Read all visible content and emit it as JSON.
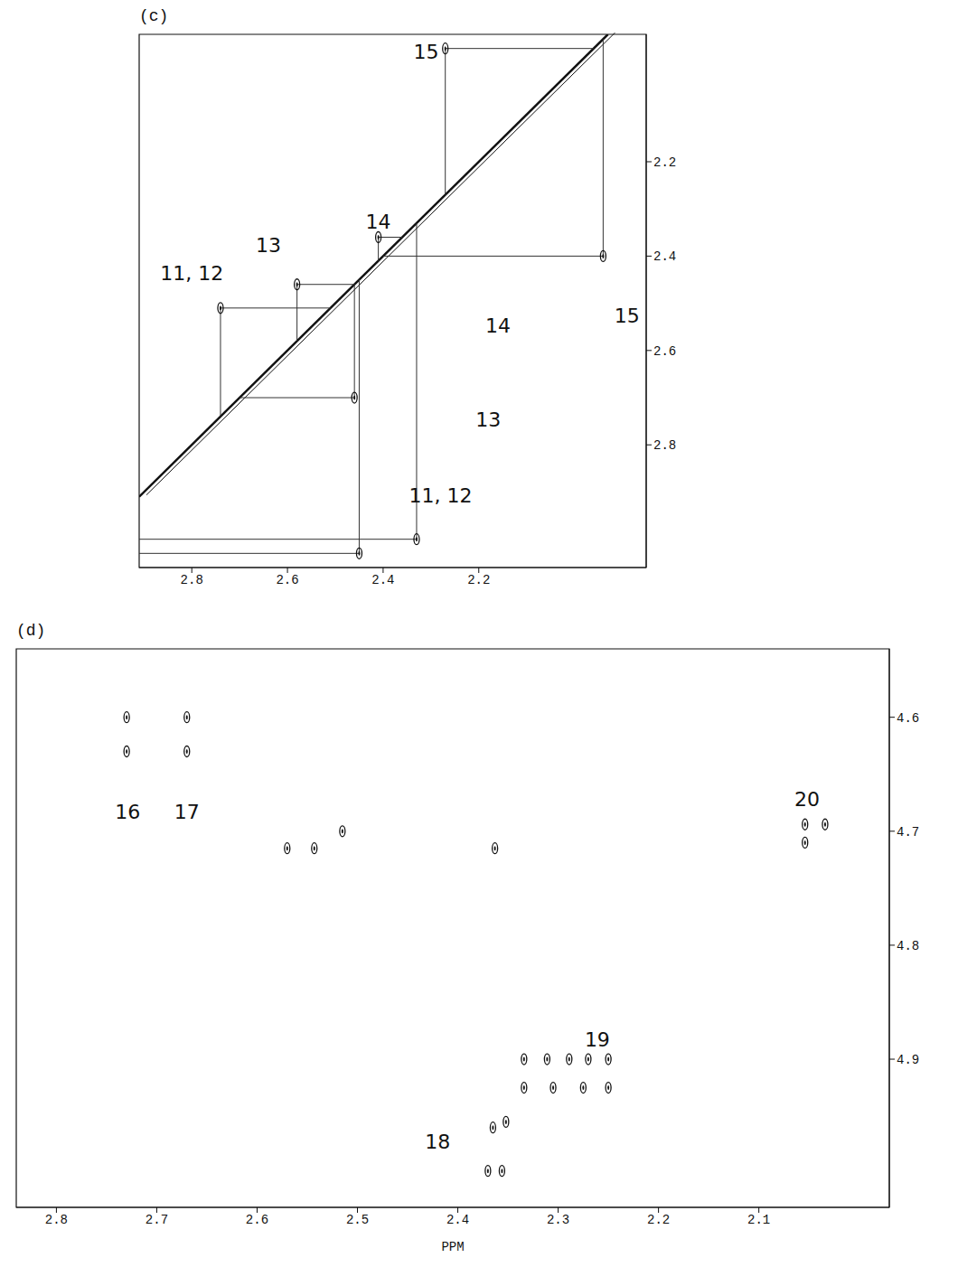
{
  "chart_data": [
    {
      "type": "correlation",
      "title": "(c)",
      "xlim": [
        1.85,
        2.91
      ],
      "ylim": [
        1.93,
        3.06
      ],
      "xticks": [
        2.8,
        2.6,
        2.4,
        2.2
      ],
      "yticks": [
        2.2,
        2.4,
        2.6,
        2.8
      ],
      "grid": false,
      "peaks": {
        "x": [
          2.27,
          1.94,
          2.33,
          2.41,
          2.58,
          2.46,
          2.74,
          2.45
        ],
        "y": [
          1.96,
          2.4,
          3.0,
          2.36,
          2.46,
          2.7,
          2.51,
          3.03
        ]
      },
      "annotations": [
        {
          "text": "15",
          "x": 2.31,
          "y": 1.97
        },
        {
          "text": "15",
          "x": 1.89,
          "y": 2.53
        },
        {
          "text": "14",
          "x": 2.41,
          "y": 2.33
        },
        {
          "text": "14",
          "x": 2.16,
          "y": 2.55
        },
        {
          "text": "13",
          "x": 2.64,
          "y": 2.38
        },
        {
          "text": "13",
          "x": 2.18,
          "y": 2.75
        },
        {
          "text": "11, 12",
          "x": 2.8,
          "y": 2.44
        },
        {
          "text": "11, 12",
          "x": 2.28,
          "y": 2.91
        }
      ]
    },
    {
      "type": "scatter",
      "title": "(d)",
      "x_label": "PPM",
      "xlim": [
        1.97,
        2.84
      ],
      "ylim": [
        4.54,
        5.03
      ],
      "xticks": [
        2.8,
        2.7,
        2.6,
        2.5,
        2.4,
        2.3,
        2.2,
        2.1
      ],
      "yticks": [
        4.6,
        4.7,
        4.8,
        4.9
      ],
      "grid": false,
      "peaks": {
        "x": [
          2.73,
          2.73,
          2.67,
          2.67,
          2.515,
          2.57,
          2.543,
          2.363,
          2.054,
          2.034,
          2.054,
          2.334,
          2.311,
          2.289,
          2.27,
          2.25,
          2.334,
          2.305,
          2.275,
          2.25,
          2.365,
          2.352,
          2.37,
          2.356
        ],
        "y": [
          4.6,
          4.63,
          4.6,
          4.63,
          4.7,
          4.715,
          4.715,
          4.715,
          4.694,
          4.694,
          4.71,
          4.9,
          4.9,
          4.9,
          4.9,
          4.9,
          4.925,
          4.925,
          4.925,
          4.925,
          4.96,
          4.955,
          4.998,
          4.998
        ]
      },
      "annotations": [
        {
          "text": "16",
          "x": 2.729,
          "y": 4.684
        },
        {
          "text": "17",
          "x": 2.67,
          "y": 4.684
        },
        {
          "text": "20",
          "x": 2.052,
          "y": 4.673
        },
        {
          "text": "19",
          "x": 2.261,
          "y": 4.884
        },
        {
          "text": "18",
          "x": 2.42,
          "y": 4.974
        }
      ]
    }
  ]
}
